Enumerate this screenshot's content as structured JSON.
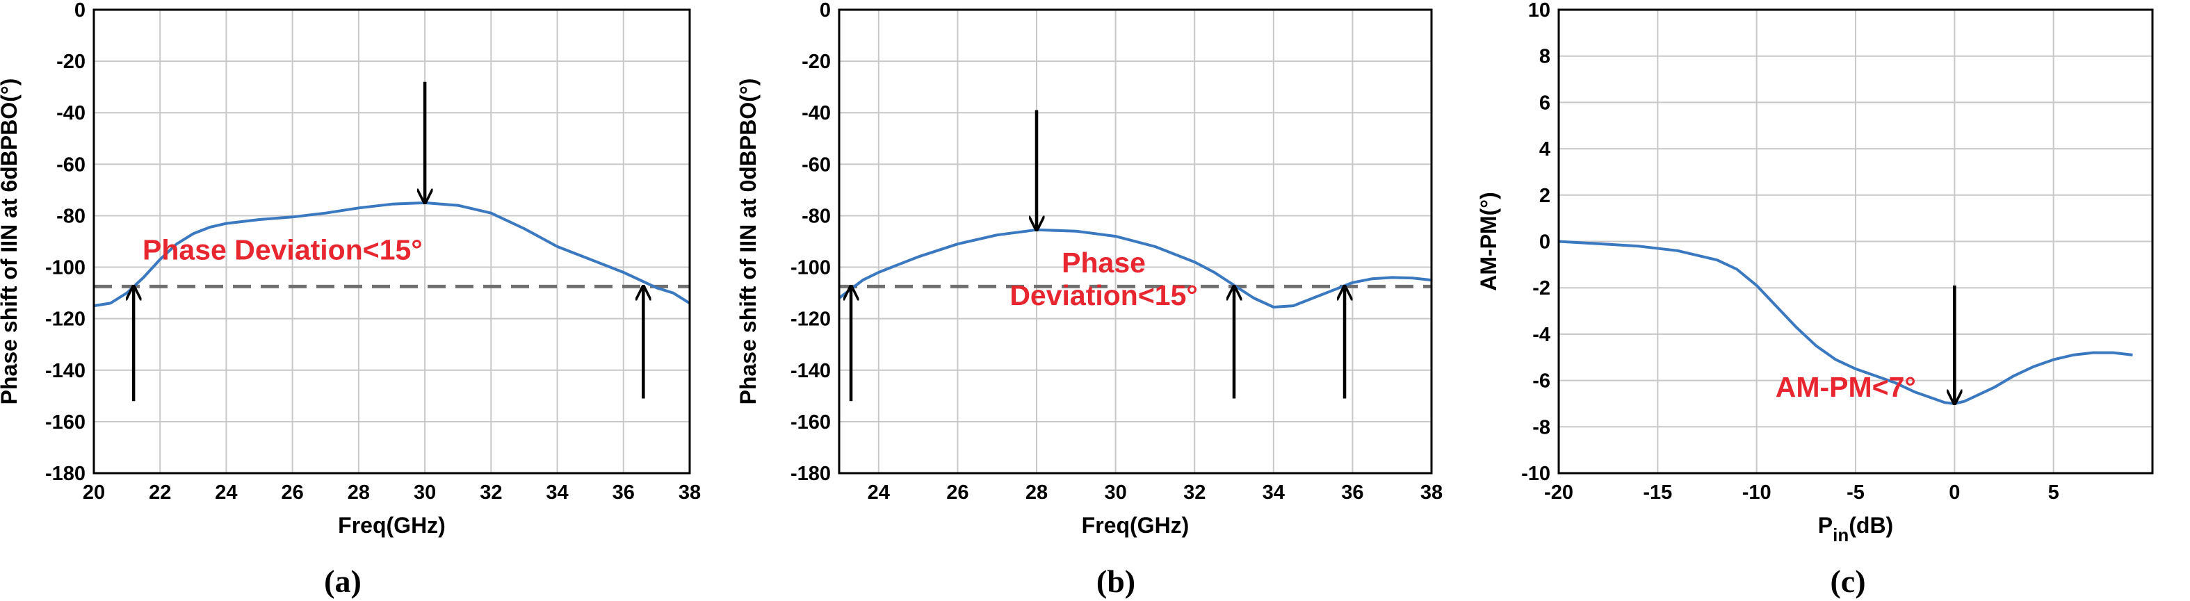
{
  "colors": {
    "curve": "#3a78c0",
    "annotation": "#e8262f",
    "grid": "#c8c8c8",
    "dashed": "#707070",
    "arrow": "#000000"
  },
  "chart_data": [
    {
      "type": "line",
      "caption": "(a)",
      "xlabel": "Freq(GHz)",
      "ylabel": "Phase shift of IIN at 6dBPBO(°)",
      "xlim": [
        20,
        38
      ],
      "ylim": [
        -180,
        0
      ],
      "xticks": [
        20,
        22,
        24,
        26,
        28,
        30,
        32,
        34,
        36,
        38
      ],
      "yticks": [
        0,
        -20,
        -40,
        -60,
        -80,
        -100,
        -120,
        -140,
        -160,
        -180
      ],
      "grid": true,
      "x": [
        20,
        20.5,
        21,
        21.5,
        22,
        22.5,
        23,
        23.5,
        24,
        25,
        26,
        27,
        28,
        29,
        30,
        31,
        32,
        33,
        34,
        35,
        36,
        36.5,
        37,
        37.5,
        38
      ],
      "y": [
        -115,
        -114,
        -110,
        -104,
        -97,
        -91,
        -87,
        -84.5,
        -83,
        -81.5,
        -80.5,
        -79,
        -77,
        -75.5,
        -75,
        -76,
        -79,
        -85,
        -92,
        -97,
        -102,
        -105,
        -108,
        -110,
        -114
      ],
      "threshold": {
        "y": -107.5,
        "style": "dashed"
      },
      "arrows": [
        {
          "x": 30,
          "from": -28,
          "to": -75,
          "direction": "down"
        },
        {
          "x": 21.2,
          "from": -152,
          "to": -107.5,
          "direction": "up"
        },
        {
          "x": 36.6,
          "from": -151,
          "to": -107.5,
          "direction": "up"
        }
      ],
      "annotations": [
        {
          "lines": [
            "Phase Deviation<15°"
          ],
          "x": 25.7,
          "y": -97
        }
      ]
    },
    {
      "type": "line",
      "caption": "(b)",
      "xlabel": "Freq(GHz)",
      "ylabel": "Phase shift of IIN at 0dBPBO(°)",
      "xlim": [
        23,
        38
      ],
      "ylim": [
        -180,
        0
      ],
      "xticks": [
        24,
        26,
        28,
        30,
        32,
        34,
        36,
        38
      ],
      "yticks": [
        0,
        -20,
        -40,
        -60,
        -80,
        -100,
        -120,
        -140,
        -160,
        -180
      ],
      "grid": true,
      "x": [
        23,
        23.3,
        23.6,
        24,
        24.5,
        25,
        26,
        27,
        28,
        29,
        30,
        31,
        32,
        32.5,
        33,
        33.5,
        34,
        34.5,
        35,
        35.5,
        36,
        36.5,
        37,
        37.5,
        38
      ],
      "y": [
        -112,
        -108.5,
        -105,
        -102,
        -99,
        -96,
        -91,
        -87.5,
        -85.5,
        -86,
        -88,
        -92,
        -98,
        -102,
        -107,
        -112,
        -115.5,
        -115,
        -112,
        -109,
        -106,
        -104.5,
        -104,
        -104.2,
        -105
      ],
      "threshold": {
        "y": -107.5,
        "style": "dashed"
      },
      "arrows": [
        {
          "x": 28,
          "from": -39,
          "to": -85.5,
          "direction": "down"
        },
        {
          "x": 23.3,
          "from": -152,
          "to": -107.5,
          "direction": "up"
        },
        {
          "x": 33,
          "from": -151,
          "to": -107.5,
          "direction": "up"
        },
        {
          "x": 35.8,
          "from": -151,
          "to": -107.5,
          "direction": "up"
        }
      ],
      "annotations": [
        {
          "lines": [
            "Phase",
            "Deviation<15°"
          ],
          "x": 29.7,
          "y": -102
        }
      ]
    },
    {
      "type": "line",
      "caption": "(c)",
      "xlabel": "P",
      "xlabel_sub": "in",
      "xlabel_suffix": "(dB)",
      "ylabel": "AM-PM(°)",
      "xlim": [
        -20,
        10
      ],
      "ylim": [
        -10,
        10
      ],
      "xticks": [
        -20,
        -15,
        -10,
        -5,
        0,
        5
      ],
      "yticks": [
        10,
        8,
        6,
        4,
        2,
        0,
        -2,
        -4,
        -6,
        -8,
        -10
      ],
      "grid": true,
      "x": [
        -20,
        -18,
        -16,
        -14,
        -12,
        -11,
        -10,
        -9,
        -8,
        -7,
        -6,
        -5,
        -4,
        -3,
        -2,
        -1,
        -0.5,
        0,
        0.5,
        1,
        2,
        3,
        4,
        5,
        6,
        7,
        8,
        9
      ],
      "y": [
        0,
        -0.1,
        -0.2,
        -0.4,
        -0.8,
        -1.2,
        -1.9,
        -2.8,
        -3.7,
        -4.5,
        -5.1,
        -5.5,
        -5.8,
        -6.1,
        -6.5,
        -6.8,
        -6.95,
        -7,
        -6.9,
        -6.7,
        -6.3,
        -5.8,
        -5.4,
        -5.1,
        -4.9,
        -4.8,
        -4.8,
        -4.9
      ],
      "arrows": [
        {
          "x": 0,
          "from": -1.9,
          "to": -7,
          "direction": "down"
        }
      ],
      "annotations": [
        {
          "lines": [
            "AM-PM<7°"
          ],
          "x": -5.5,
          "y": -6.7
        }
      ]
    }
  ]
}
